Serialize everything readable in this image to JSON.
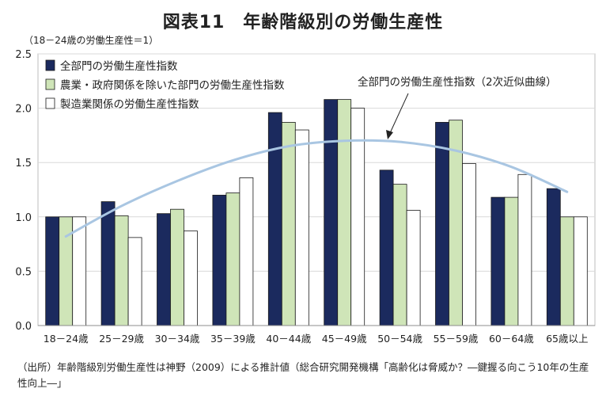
{
  "chart_data": {
    "type": "bar",
    "title": "図表11　年齢階級別の労働生産性",
    "ylabel": "（18－24歳の労働生産性＝1）",
    "xlabel": "",
    "ylim": [
      0,
      2.5
    ],
    "yticks": [
      "0.0",
      "0.5",
      "1.0",
      "1.5",
      "2.0",
      "2.5"
    ],
    "categories": [
      "18－24歳",
      "25－29歳",
      "30－34歳",
      "35－39歳",
      "40－44歳",
      "45－49歳",
      "50－54歳",
      "55－59歳",
      "60－64歳",
      "65歳以上"
    ],
    "series": [
      {
        "name": "全部門の労働生産性指数",
        "color": "#1b2a5e",
        "values": [
          1.0,
          1.14,
          1.03,
          1.2,
          1.96,
          2.08,
          1.43,
          1.87,
          1.18,
          1.26
        ]
      },
      {
        "name": "農業・政府関係を除いた部門の労働生産性指数",
        "color": "#cfe5b8",
        "values": [
          1.0,
          1.01,
          1.07,
          1.22,
          1.87,
          2.08,
          1.3,
          1.89,
          1.18,
          1.0
        ]
      },
      {
        "name": "製造業関係の労働生産性指数",
        "color": "#ffffff",
        "values": [
          1.0,
          0.81,
          0.87,
          1.36,
          1.8,
          2.0,
          1.06,
          1.49,
          1.39,
          1.0
        ]
      }
    ],
    "trendline": {
      "label": "全部門の労働生産性指数（2次近似曲線）",
      "color": "#a9c6e2",
      "values": [
        0.82,
        1.1,
        1.33,
        1.52,
        1.65,
        1.7,
        1.69,
        1.61,
        1.46,
        1.23
      ]
    },
    "grid": true,
    "legend": "top-left"
  },
  "source_note": "（出所）年齢階級別労働生産性は神野（2009）による推計値（総合研究開発機構「高齢化は脅威か？―鍵握る向こう10年の生産性向上―」"
}
